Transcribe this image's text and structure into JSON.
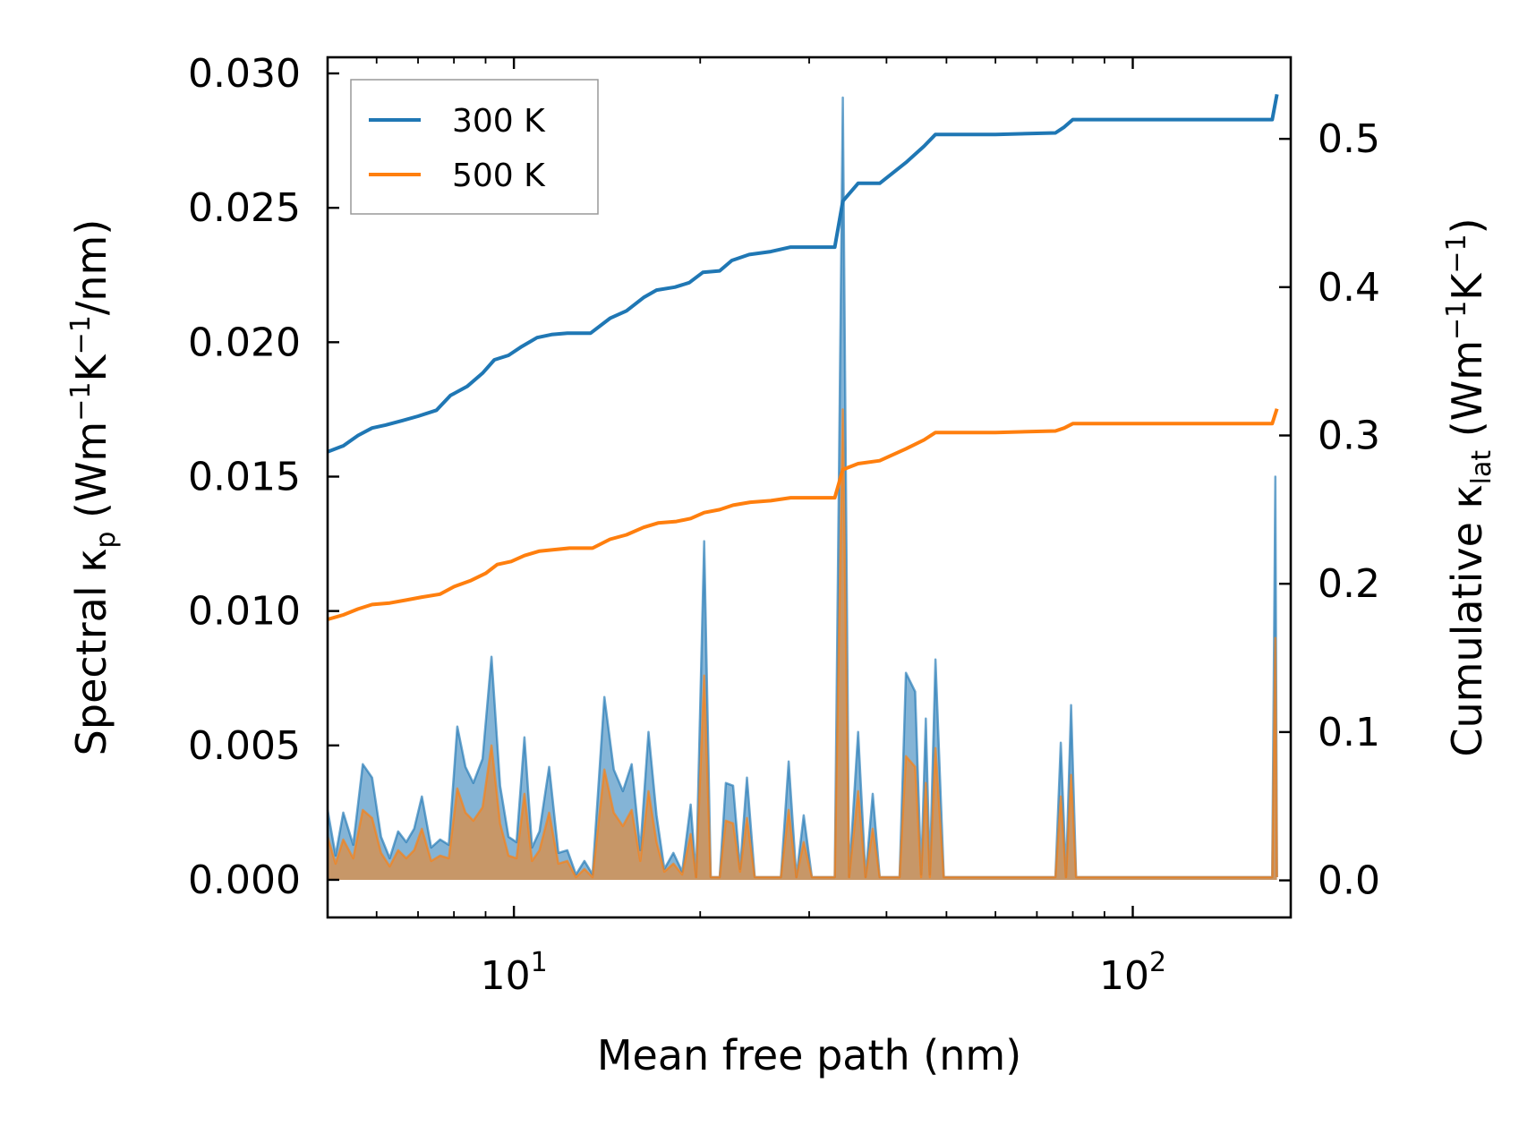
{
  "chart_data": {
    "type": "line",
    "xscale": "log",
    "xlim": [
      5.0,
      180.0
    ],
    "xlabel": "Mean free path (nm)",
    "x_ticks": [
      {
        "value": 10,
        "base": "10",
        "exp": "1"
      },
      {
        "value": 100,
        "base": "10",
        "exp": "2"
      }
    ],
    "y_left": {
      "label": "Spectral κ_p (Wm^-1K^-1/nm)",
      "ylim": [
        -0.0014,
        0.0306
      ],
      "ticks": [
        0.0,
        0.005,
        0.01,
        0.015,
        0.02,
        0.025,
        0.03
      ],
      "tick_labels": [
        "0.000",
        "0.005",
        "0.010",
        "0.015",
        "0.020",
        "0.025",
        "0.030"
      ]
    },
    "y_right": {
      "label": "Cumulative κ_lat (Wm^-1K^-1)",
      "ylim": [
        -0.025,
        0.555
      ],
      "ticks": [
        0.0,
        0.1,
        0.2,
        0.3,
        0.4,
        0.5
      ],
      "tick_labels": [
        "0.0",
        "0.1",
        "0.2",
        "0.3",
        "0.4",
        "0.5"
      ]
    },
    "legend": {
      "position": "top-left",
      "entries": [
        "300 K",
        "500 K"
      ]
    },
    "series": [
      {
        "name": "300 K",
        "color": "#1f77b4",
        "fill_color": "#1f77b4",
        "spectral": [
          [
            5.0,
            0.0026
          ],
          [
            5.15,
            0.0009
          ],
          [
            5.3,
            0.0025
          ],
          [
            5.5,
            0.0013
          ],
          [
            5.7,
            0.0043
          ],
          [
            5.9,
            0.0038
          ],
          [
            6.1,
            0.0016
          ],
          [
            6.3,
            0.0008
          ],
          [
            6.5,
            0.0018
          ],
          [
            6.7,
            0.0014
          ],
          [
            6.9,
            0.0019
          ],
          [
            7.1,
            0.0031
          ],
          [
            7.35,
            0.0012
          ],
          [
            7.6,
            0.0015
          ],
          [
            7.85,
            0.0013
          ],
          [
            8.1,
            0.0057
          ],
          [
            8.35,
            0.0042
          ],
          [
            8.6,
            0.0036
          ],
          [
            8.9,
            0.0045
          ],
          [
            9.2,
            0.0083
          ],
          [
            9.5,
            0.0035
          ],
          [
            9.8,
            0.0016
          ],
          [
            10.1,
            0.0014
          ],
          [
            10.4,
            0.0053
          ],
          [
            10.7,
            0.0012
          ],
          [
            11.0,
            0.0018
          ],
          [
            11.4,
            0.0042
          ],
          [
            11.8,
            0.001
          ],
          [
            12.2,
            0.0011
          ],
          [
            12.6,
            0.0002
          ],
          [
            13.0,
            0.0007
          ],
          [
            13.4,
            0.0002
          ],
          [
            14.0,
            0.0068
          ],
          [
            14.5,
            0.0041
          ],
          [
            15.0,
            0.0033
          ],
          [
            15.5,
            0.0043
          ],
          [
            16.0,
            0.0011
          ],
          [
            16.5,
            0.0055
          ],
          [
            17.0,
            0.0024
          ],
          [
            17.5,
            0.0004
          ],
          [
            18.1,
            0.001
          ],
          [
            18.7,
            0.0003
          ],
          [
            19.3,
            0.0028
          ],
          [
            19.7,
            0.0001
          ],
          [
            20.3,
            0.0126
          ],
          [
            20.8,
            0.0001
          ],
          [
            21.5,
            0.0001
          ],
          [
            22.0,
            0.0036
          ],
          [
            22.6,
            0.0035
          ],
          [
            23.2,
            0.0004
          ],
          [
            23.8,
            0.0038
          ],
          [
            24.5,
            0.0001
          ],
          [
            27.0,
            0.0001
          ],
          [
            27.8,
            0.0044
          ],
          [
            28.6,
            0.0001
          ],
          [
            29.4,
            0.0024
          ],
          [
            30.3,
            0.0001
          ],
          [
            33.0,
            0.0001
          ],
          [
            34.0,
            0.0291
          ],
          [
            34.8,
            0.0001
          ],
          [
            36.0,
            0.0055
          ],
          [
            37.0,
            0.0001
          ],
          [
            38.0,
            0.0032
          ],
          [
            39.0,
            0.0001
          ],
          [
            42.0,
            0.0001
          ],
          [
            43.0,
            0.0077
          ],
          [
            44.5,
            0.007
          ],
          [
            45.5,
            0.0002
          ],
          [
            46.3,
            0.006
          ],
          [
            47.0,
            0.0002
          ],
          [
            48.0,
            0.0082
          ],
          [
            49.5,
            0.0001
          ],
          [
            75.0,
            0.0001
          ],
          [
            76.5,
            0.0051
          ],
          [
            78.0,
            0.0001
          ],
          [
            79.5,
            0.0065
          ],
          [
            81.0,
            0.0001
          ],
          [
            168.0,
            0.0001
          ],
          [
            170.0,
            0.015
          ],
          [
            171.0,
            0.0001
          ]
        ],
        "cumulative": [
          [
            5.0,
            0.289
          ],
          [
            5.3,
            0.293
          ],
          [
            5.6,
            0.3
          ],
          [
            5.9,
            0.305
          ],
          [
            6.2,
            0.307
          ],
          [
            6.6,
            0.31
          ],
          [
            7.0,
            0.313
          ],
          [
            7.5,
            0.317
          ],
          [
            7.9,
            0.327
          ],
          [
            8.4,
            0.333
          ],
          [
            8.9,
            0.342
          ],
          [
            9.3,
            0.351
          ],
          [
            9.8,
            0.354
          ],
          [
            10.3,
            0.36
          ],
          [
            10.9,
            0.366
          ],
          [
            11.5,
            0.368
          ],
          [
            12.2,
            0.369
          ],
          [
            13.3,
            0.369
          ],
          [
            14.3,
            0.379
          ],
          [
            15.2,
            0.384
          ],
          [
            16.2,
            0.393
          ],
          [
            17.0,
            0.398
          ],
          [
            18.2,
            0.4
          ],
          [
            19.2,
            0.403
          ],
          [
            20.2,
            0.41
          ],
          [
            21.5,
            0.411
          ],
          [
            22.5,
            0.418
          ],
          [
            24.0,
            0.422
          ],
          [
            26.0,
            0.424
          ],
          [
            28.0,
            0.427
          ],
          [
            33.0,
            0.427
          ],
          [
            34.0,
            0.458
          ],
          [
            36.0,
            0.47
          ],
          [
            39.0,
            0.47
          ],
          [
            43.0,
            0.484
          ],
          [
            46.0,
            0.495
          ],
          [
            48.0,
            0.503
          ],
          [
            60.0,
            0.503
          ],
          [
            75.0,
            0.504
          ],
          [
            77.5,
            0.508
          ],
          [
            80.0,
            0.513
          ],
          [
            120.0,
            0.513
          ],
          [
            168.0,
            0.513
          ],
          [
            171.0,
            0.53
          ]
        ]
      },
      {
        "name": "500 K",
        "color": "#ff7f0e",
        "fill_color": "#ff7f0e",
        "spectral": [
          [
            5.0,
            0.0016
          ],
          [
            5.15,
            0.0006
          ],
          [
            5.3,
            0.0015
          ],
          [
            5.5,
            0.0008
          ],
          [
            5.7,
            0.0026
          ],
          [
            5.9,
            0.0023
          ],
          [
            6.1,
            0.001
          ],
          [
            6.3,
            0.0005
          ],
          [
            6.5,
            0.0011
          ],
          [
            6.7,
            0.0008
          ],
          [
            6.9,
            0.0011
          ],
          [
            7.1,
            0.0019
          ],
          [
            7.35,
            0.0007
          ],
          [
            7.6,
            0.0009
          ],
          [
            7.85,
            0.0008
          ],
          [
            8.1,
            0.0034
          ],
          [
            8.35,
            0.0025
          ],
          [
            8.6,
            0.0022
          ],
          [
            8.9,
            0.0027
          ],
          [
            9.2,
            0.005
          ],
          [
            9.5,
            0.0021
          ],
          [
            9.8,
            0.0009
          ],
          [
            10.1,
            0.0008
          ],
          [
            10.4,
            0.0032
          ],
          [
            10.7,
            0.0007
          ],
          [
            11.0,
            0.0011
          ],
          [
            11.4,
            0.0025
          ],
          [
            11.8,
            0.0006
          ],
          [
            12.2,
            0.0007
          ],
          [
            12.6,
            0.0001
          ],
          [
            13.0,
            0.0004
          ],
          [
            13.4,
            0.0001
          ],
          [
            14.0,
            0.0041
          ],
          [
            14.5,
            0.0025
          ],
          [
            15.0,
            0.002
          ],
          [
            15.5,
            0.0026
          ],
          [
            16.0,
            0.0007
          ],
          [
            16.5,
            0.0033
          ],
          [
            17.0,
            0.0014
          ],
          [
            17.5,
            0.0003
          ],
          [
            18.1,
            0.0006
          ],
          [
            18.7,
            0.0002
          ],
          [
            19.3,
            0.0017
          ],
          [
            19.7,
            0.0001
          ],
          [
            20.3,
            0.0076
          ],
          [
            20.8,
            0.0001
          ],
          [
            21.5,
            0.0001
          ],
          [
            22.0,
            0.0022
          ],
          [
            22.6,
            0.0021
          ],
          [
            23.2,
            0.0003
          ],
          [
            23.8,
            0.0023
          ],
          [
            24.5,
            0.0001
          ],
          [
            27.0,
            0.0001
          ],
          [
            27.8,
            0.0026
          ],
          [
            28.6,
            0.0001
          ],
          [
            29.4,
            0.0014
          ],
          [
            30.3,
            0.0001
          ],
          [
            33.0,
            0.0001
          ],
          [
            34.0,
            0.0175
          ],
          [
            34.8,
            0.0001
          ],
          [
            36.0,
            0.0033
          ],
          [
            37.0,
            0.0001
          ],
          [
            38.0,
            0.0019
          ],
          [
            39.0,
            0.0001
          ],
          [
            42.0,
            0.0001
          ],
          [
            43.0,
            0.0046
          ],
          [
            44.5,
            0.0042
          ],
          [
            45.5,
            0.0001
          ],
          [
            46.3,
            0.0036
          ],
          [
            47.0,
            0.0001
          ],
          [
            48.0,
            0.0049
          ],
          [
            49.5,
            0.0001
          ],
          [
            75.0,
            0.0001
          ],
          [
            76.5,
            0.0031
          ],
          [
            78.0,
            0.0001
          ],
          [
            79.5,
            0.0039
          ],
          [
            81.0,
            0.0001
          ],
          [
            168.0,
            0.0001
          ],
          [
            170.0,
            0.009
          ],
          [
            171.0,
            0.0001
          ]
        ],
        "cumulative": [
          [
            5.0,
            0.176
          ],
          [
            5.3,
            0.179
          ],
          [
            5.6,
            0.183
          ],
          [
            5.9,
            0.186
          ],
          [
            6.3,
            0.187
          ],
          [
            6.7,
            0.189
          ],
          [
            7.1,
            0.191
          ],
          [
            7.6,
            0.193
          ],
          [
            8.0,
            0.198
          ],
          [
            8.5,
            0.202
          ],
          [
            9.0,
            0.207
          ],
          [
            9.4,
            0.213
          ],
          [
            9.9,
            0.215
          ],
          [
            10.4,
            0.219
          ],
          [
            11.0,
            0.222
          ],
          [
            11.6,
            0.223
          ],
          [
            12.3,
            0.224
          ],
          [
            13.4,
            0.224
          ],
          [
            14.3,
            0.23
          ],
          [
            15.2,
            0.233
          ],
          [
            16.2,
            0.238
          ],
          [
            17.1,
            0.241
          ],
          [
            18.3,
            0.242
          ],
          [
            19.3,
            0.244
          ],
          [
            20.3,
            0.248
          ],
          [
            21.5,
            0.25
          ],
          [
            22.6,
            0.253
          ],
          [
            24.1,
            0.255
          ],
          [
            26.0,
            0.256
          ],
          [
            28.0,
            0.258
          ],
          [
            33.0,
            0.258
          ],
          [
            34.0,
            0.277
          ],
          [
            36.0,
            0.281
          ],
          [
            39.0,
            0.283
          ],
          [
            43.0,
            0.291
          ],
          [
            46.0,
            0.297
          ],
          [
            48.0,
            0.302
          ],
          [
            60.0,
            0.302
          ],
          [
            75.0,
            0.303
          ],
          [
            77.5,
            0.305
          ],
          [
            80.0,
            0.308
          ],
          [
            120.0,
            0.308
          ],
          [
            168.0,
            0.308
          ],
          [
            171.0,
            0.318
          ]
        ]
      }
    ]
  }
}
